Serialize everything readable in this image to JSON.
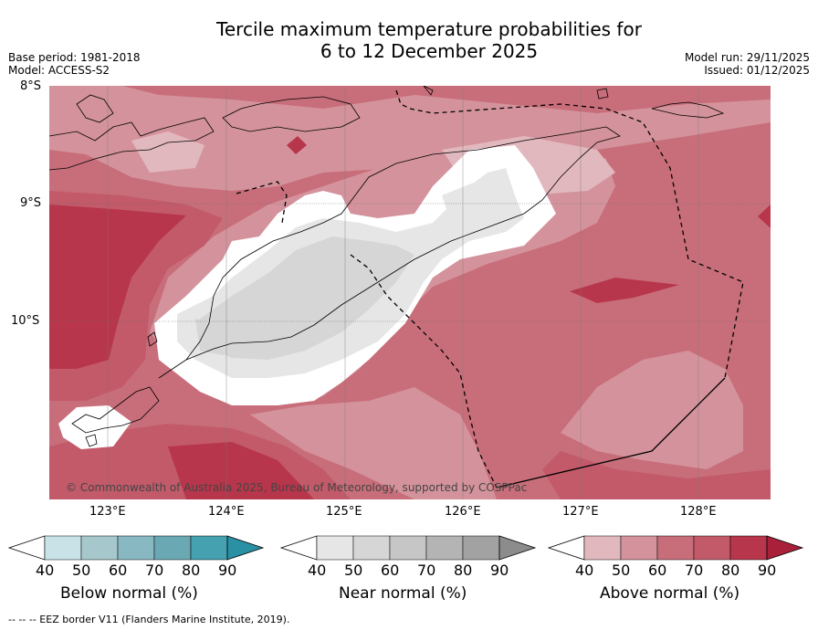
{
  "title": {
    "line1": "Tercile maximum temperature probabilities for",
    "line2": "6 to 12 December 2025"
  },
  "meta_left": {
    "base_period": "Base period: 1981-2018",
    "model": "Model: ACCESS-S2"
  },
  "meta_right": {
    "model_run": "Model run: 29/11/2025",
    "issued": "Issued: 01/12/2025"
  },
  "map": {
    "lat_labels": [
      "8°S",
      "9°S",
      "10°S"
    ],
    "lon_labels": [
      "123°E",
      "124°E",
      "125°E",
      "126°E",
      "127°E",
      "128°E"
    ],
    "copyright": "© Commonwealth of Australia 2025, Bureau of Meteorology, supported by COSPPac"
  },
  "colorbars": [
    {
      "title": "Below normal (%)",
      "ticks": [
        "40",
        "50",
        "60",
        "70",
        "80",
        "90"
      ],
      "colors": [
        "#ffffff",
        "#c8e2e8",
        "#a6c8cc",
        "#88b8c2",
        "#6aa8b4",
        "#45a0b0",
        "#2a90a4"
      ]
    },
    {
      "title": "Near normal (%)",
      "ticks": [
        "40",
        "50",
        "60",
        "70",
        "80",
        "90"
      ],
      "colors": [
        "#ffffff",
        "#e6e6e6",
        "#d6d6d6",
        "#c6c6c6",
        "#b4b4b4",
        "#a2a2a2",
        "#8c8c8c"
      ]
    },
    {
      "title": "Above normal (%)",
      "ticks": [
        "40",
        "50",
        "60",
        "70",
        "80",
        "90"
      ],
      "colors": [
        "#ffffff",
        "#e2b8bf",
        "#d4939c",
        "#c86e7a",
        "#c25a6a",
        "#b8364b",
        "#a8203a"
      ]
    }
  ],
  "footer": "--  --  -- EEZ border V11 (Flanders Marine Institute, 2019)."
}
